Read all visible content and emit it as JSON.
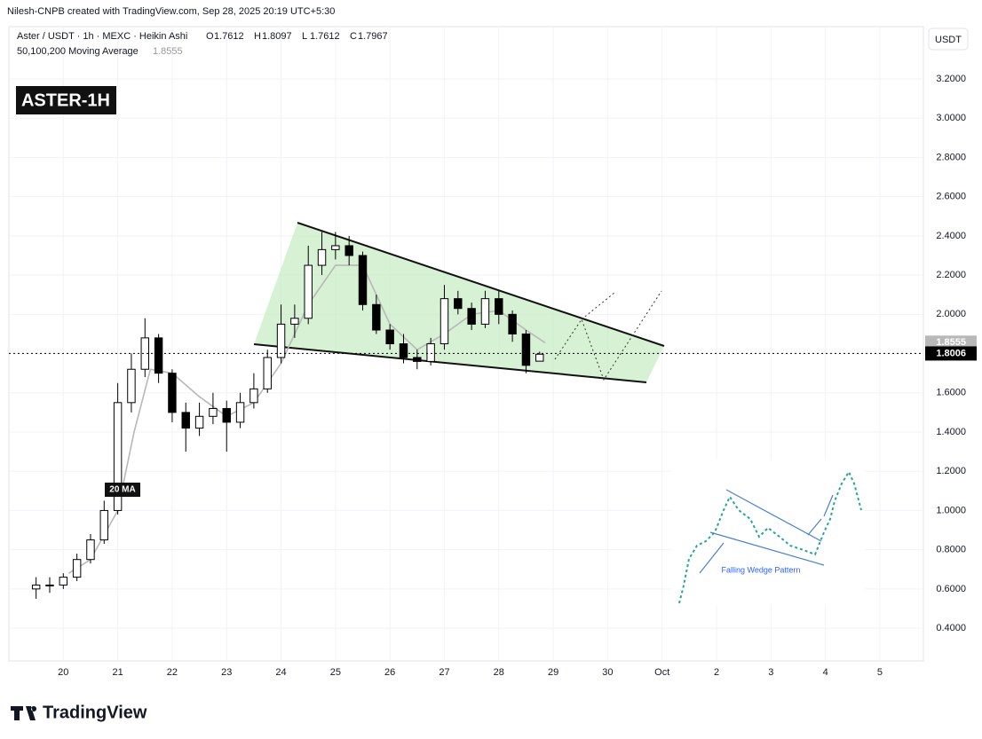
{
  "header": {
    "credit": "Nilesh-CNPB created with TradingView.com, Sep 28, 2025 20:19 UTC+5:30",
    "symbol": "Aster / USDT · 1h · MEXC · Heikin Ashi",
    "ohlc": [
      {
        "label": "O",
        "value": 1.7612
      },
      {
        "label": "H",
        "value": 1.8097
      },
      {
        "label": "L",
        "value": 1.7612
      },
      {
        "label": "C",
        "value": 1.7967
      }
    ],
    "currency": "USDT"
  },
  "badge": "ASTER-1H",
  "brand": "TradingView",
  "chart_data": {
    "type": "candlestick",
    "xlim": [
      19.0,
      35.8
    ],
    "ylim": [
      0.233,
      3.467
    ],
    "xticks": [
      20,
      21,
      22,
      23,
      24,
      25,
      26,
      27,
      28,
      29,
      30,
      {
        "value": 31,
        "label": "Oct"
      },
      {
        "value": 32,
        "label": "2"
      },
      {
        "value": 33,
        "label": "3"
      },
      {
        "value": 34,
        "label": "4"
      },
      {
        "value": 35,
        "label": "5"
      }
    ],
    "yticks": [
      {
        "value": 0.4,
        "label": "0.4000"
      },
      {
        "value": 0.6,
        "label": "0.6000"
      },
      {
        "value": 0.8,
        "label": "0.8000"
      },
      {
        "value": 1.0,
        "label": "1.0000"
      },
      {
        "value": 1.2,
        "label": "1.2000"
      },
      {
        "value": 1.4,
        "label": "1.4000"
      },
      {
        "value": 1.6,
        "label": "1.6000"
      },
      {
        "value": 1.8,
        "label": "1.8000"
      },
      {
        "value": 2.0,
        "label": "2.0000"
      },
      {
        "value": 2.2,
        "label": "2.2000"
      },
      {
        "value": 2.4,
        "label": "2.4000"
      },
      {
        "value": 2.6,
        "label": "2.6000"
      },
      {
        "value": 2.8,
        "label": "2.8000"
      },
      {
        "value": 3.0,
        "label": "3.0000"
      },
      {
        "value": 3.2,
        "label": "3.2000"
      }
    ],
    "grid": true,
    "up_color": "#ffffff",
    "down_color": "#000000",
    "x": [
      19.5,
      19.75,
      20.0,
      20.25,
      20.5,
      20.75,
      21.0,
      21.25,
      21.5,
      21.75,
      22.0,
      22.25,
      22.5,
      22.75,
      23.0,
      23.25,
      23.5,
      23.75,
      24.0,
      24.25,
      24.5,
      24.75,
      25.0,
      25.25,
      25.5,
      25.75,
      26.0,
      26.25,
      26.5,
      26.75,
      27.0,
      27.25,
      27.5,
      27.75,
      28.0,
      28.25,
      28.5,
      28.75
    ],
    "open": [
      0.6,
      0.62,
      0.62,
      0.66,
      0.75,
      0.85,
      1.0,
      1.55,
      1.72,
      1.88,
      1.7,
      1.5,
      1.42,
      1.48,
      1.52,
      1.45,
      1.55,
      1.62,
      1.78,
      1.95,
      1.98,
      2.25,
      2.33,
      2.35,
      2.3,
      2.05,
      1.92,
      1.85,
      1.78,
      1.76,
      1.85,
      2.08,
      2.03,
      1.95,
      2.08,
      2.0,
      1.9,
      1.7612
    ],
    "high": [
      0.66,
      0.66,
      0.68,
      0.78,
      0.88,
      1.05,
      1.65,
      1.8,
      1.98,
      1.9,
      1.72,
      1.55,
      1.55,
      1.6,
      1.56,
      1.6,
      1.7,
      1.82,
      2.05,
      2.05,
      2.35,
      2.42,
      2.42,
      2.4,
      2.32,
      2.1,
      1.95,
      1.9,
      1.82,
      1.88,
      2.15,
      2.12,
      2.06,
      2.12,
      2.12,
      2.02,
      1.92,
      1.8097
    ],
    "low": [
      0.55,
      0.58,
      0.6,
      0.64,
      0.73,
      0.83,
      0.98,
      1.5,
      1.68,
      1.65,
      1.45,
      1.3,
      1.38,
      1.44,
      1.3,
      1.42,
      1.52,
      1.6,
      1.75,
      1.88,
      1.95,
      2.2,
      2.28,
      2.25,
      2.02,
      1.9,
      1.82,
      1.75,
      1.72,
      1.74,
      1.82,
      2.0,
      1.92,
      1.93,
      1.95,
      1.86,
      1.7,
      1.7612
    ],
    "close": [
      0.62,
      0.62,
      0.66,
      0.75,
      0.85,
      1.0,
      1.55,
      1.72,
      1.88,
      1.7,
      1.5,
      1.42,
      1.48,
      1.52,
      1.45,
      1.55,
      1.62,
      1.78,
      1.95,
      1.98,
      2.25,
      2.33,
      2.35,
      2.3,
      2.05,
      1.92,
      1.85,
      1.78,
      1.76,
      1.85,
      2.08,
      2.03,
      1.95,
      2.08,
      2.0,
      1.9,
      1.74,
      1.7967
    ],
    "ma": {
      "name": "50,100,200 Moving Average",
      "label": "20 MA",
      "color": "#b8b8b8",
      "value": 1.8555,
      "x": [
        20.1,
        20.5,
        21.0,
        21.3,
        21.6,
        22.0,
        22.5,
        23.0,
        23.5,
        24.0,
        24.5,
        25.0,
        25.5,
        26.0,
        26.5,
        27.0,
        27.5,
        28.0,
        28.5,
        28.85
      ],
      "values": [
        0.68,
        0.75,
        1.0,
        1.4,
        1.72,
        1.7,
        1.58,
        1.48,
        1.55,
        1.75,
        2.05,
        2.25,
        2.25,
        1.95,
        1.82,
        1.9,
        2.0,
        2.02,
        1.92,
        1.8555
      ]
    },
    "last_price": 1.8006,
    "inset_label": "Falling Wedge Pattern"
  }
}
